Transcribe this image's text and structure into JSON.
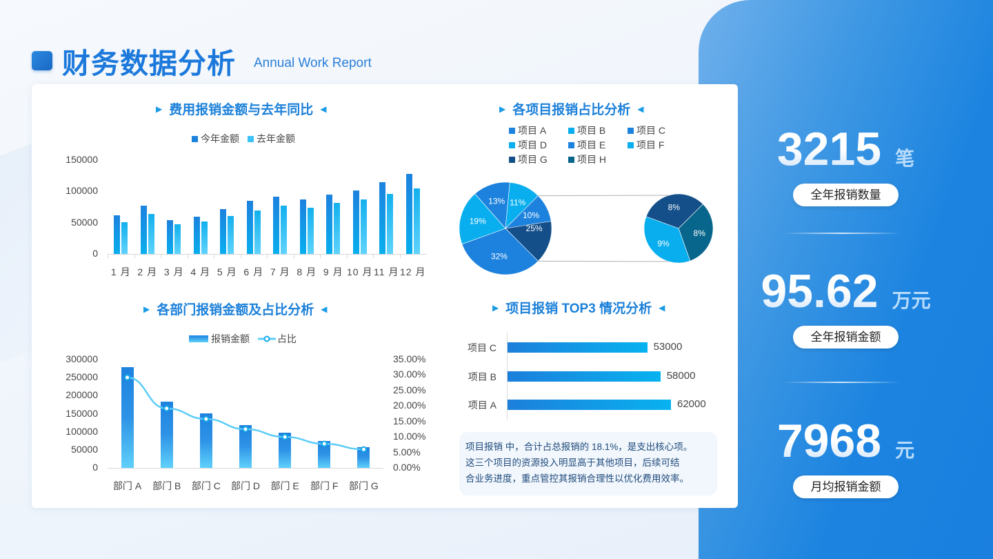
{
  "header": {
    "title": "财务数据分析",
    "subtitle": "Annual Work Report"
  },
  "chart1": {
    "title": "费用报销金额与去年同比",
    "legend": [
      "今年金额",
      "去年金额"
    ],
    "yticks": [
      "150000",
      "100000",
      "50000",
      "0"
    ]
  },
  "chart2": {
    "title": "各项目报销占比分析",
    "legend": [
      "项目 A",
      "项目 B",
      "项目 C",
      "项目 D",
      "项目 E",
      "项目 F",
      "项目 G",
      "项目 H"
    ],
    "main_labels": [
      "25%",
      "32%",
      "19%",
      "13%",
      "11%",
      "10%"
    ],
    "sub_labels": [
      "8%",
      "8%",
      "9%"
    ]
  },
  "chart3": {
    "title": "各部门报销金额及占比分析",
    "legend": [
      "报销金额",
      "占比"
    ],
    "yticks_left": [
      "300000",
      "250000",
      "200000",
      "150000",
      "100000",
      "50000",
      "0"
    ],
    "yticks_right": [
      "35.00%",
      "30.00%",
      "25.00%",
      "20.00%",
      "15.00%",
      "10.00%",
      "5.00%",
      "0.00%"
    ]
  },
  "chart4": {
    "title": "项目报销 TOP3 情况分析",
    "labels": [
      "项目 C",
      "项目 B",
      "项目 A"
    ],
    "values": [
      "53000",
      "58000",
      "62000"
    ]
  },
  "note": {
    "text_lines": [
      "项目报销 中，合计占总报销的 18.1%，是支出核心项。",
      "这三个项目的资源投入明显高于其他项目，后续可结",
      "合业务进度，重点管控其报销合理性以优化费用效率。"
    ]
  },
  "stats": [
    {
      "value": "3215",
      "unit": "笔",
      "label": "全年报销数量"
    },
    {
      "value": "95.62",
      "unit": "万元",
      "label": "全年报销金额"
    },
    {
      "value": "7968",
      "unit": "元",
      "label": "月均报销金额"
    }
  ],
  "colors": {
    "accent": "#1c79db",
    "panel": "#1c84e0",
    "bar_dark": "#1d82de",
    "bar_light": "#08aeee",
    "line": "#5ccdf8"
  },
  "chart_data": [
    {
      "type": "bar",
      "title": "费用报销金额与去年同比",
      "categories": [
        "1月",
        "2月",
        "3月",
        "4月",
        "5月",
        "6月",
        "7月",
        "8月",
        "9月",
        "10月",
        "11月",
        "12月"
      ],
      "series": [
        {
          "name": "今年金额",
          "values": [
            62000,
            77000,
            54000,
            60000,
            72000,
            85000,
            92000,
            87000,
            95000,
            102000,
            115000,
            128000
          ]
        },
        {
          "name": "去年金额",
          "values": [
            51000,
            64000,
            47000,
            52000,
            61000,
            70000,
            77000,
            74000,
            82000,
            87000,
            96000,
            105000
          ]
        }
      ],
      "xlabel": "",
      "ylabel": "",
      "ylim": [
        0,
        150000
      ],
      "legend_position": "top"
    },
    {
      "type": "pie",
      "title": "各项目报销占比分析",
      "subtype": "pie-of-pie",
      "main": {
        "labels": [
          "25%",
          "32%",
          "19%",
          "13%",
          "11%",
          "10%"
        ],
        "values": [
          25,
          32,
          19,
          13,
          11,
          10
        ]
      },
      "secondary": {
        "labels": [
          "8%",
          "8%",
          "9%"
        ],
        "values": [
          8,
          8,
          9
        ]
      },
      "legend": [
        "项目 A",
        "项目 B",
        "项目 C",
        "项目 D",
        "项目 E",
        "项目 F",
        "项目 G",
        "项目 H"
      ],
      "legend_position": "top"
    },
    {
      "type": "bar",
      "title": "各部门报销金额及占比分析",
      "categories": [
        "部门 A",
        "部门 B",
        "部门 C",
        "部门 D",
        "部门 E",
        "部门 F",
        "部门 G"
      ],
      "series": [
        {
          "name": "报销金额",
          "type": "bar",
          "axis": "left",
          "values": [
            279000,
            183000,
            151000,
            118000,
            97000,
            74000,
            57000
          ]
        },
        {
          "name": "占比",
          "type": "line",
          "axis": "right",
          "values": [
            29.2,
            19.2,
            15.8,
            12.5,
            10.0,
            7.8,
            6.0
          ]
        }
      ],
      "ylim": [
        0,
        300000
      ],
      "y2lim": [
        0,
        35
      ],
      "legend_position": "top"
    },
    {
      "type": "bar",
      "orientation": "horizontal",
      "title": "项目报销 TOP3 情况分析",
      "categories": [
        "项目 C",
        "项目 B",
        "项目 A"
      ],
      "values": [
        53000,
        58000,
        62000
      ]
    }
  ]
}
